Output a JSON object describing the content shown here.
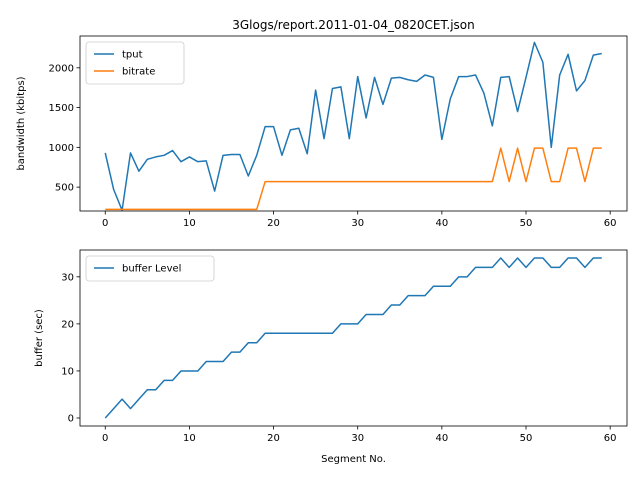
{
  "chart_data": [
    {
      "type": "line",
      "title": "3Glogs/report.2011-01-04_0820CET.json",
      "xlabel": "",
      "ylabel": "bandwidth (kbitps)",
      "xlim": [
        -3,
        62
      ],
      "ylim": [
        200,
        2400
      ],
      "xticks": [
        0,
        10,
        20,
        30,
        40,
        50,
        60
      ],
      "yticks": [
        500,
        1000,
        1500,
        2000
      ],
      "grid": false,
      "legend_position": "upper left",
      "x": [
        0,
        1,
        2,
        3,
        4,
        5,
        6,
        7,
        8,
        9,
        10,
        11,
        12,
        13,
        14,
        15,
        16,
        17,
        18,
        19,
        20,
        21,
        22,
        23,
        24,
        25,
        26,
        27,
        28,
        29,
        30,
        31,
        32,
        33,
        34,
        35,
        36,
        37,
        38,
        39,
        40,
        41,
        42,
        43,
        44,
        45,
        46,
        47,
        48,
        49,
        50,
        51,
        52,
        53,
        54,
        55,
        56,
        57,
        58,
        59
      ],
      "series": [
        {
          "name": "tput",
          "color": "#1f77b4",
          "values": [
            930,
            470,
            210,
            930,
            700,
            850,
            880,
            900,
            960,
            820,
            880,
            820,
            830,
            450,
            900,
            910,
            910,
            640,
            900,
            1260,
            1260,
            900,
            1220,
            1240,
            920,
            1720,
            1110,
            1740,
            1760,
            1110,
            1890,
            1370,
            1880,
            1540,
            1870,
            1880,
            1850,
            1830,
            1910,
            1880,
            1100,
            1610,
            1890,
            1890,
            1910,
            1680,
            1270,
            1880,
            1890,
            1450,
            1880,
            2320,
            2070,
            1000,
            1910,
            2170,
            1710,
            1840,
            2160,
            2180
          ]
        },
        {
          "name": "bitrate",
          "color": "#ff7f0e",
          "values": [
            220,
            220,
            220,
            220,
            220,
            220,
            220,
            220,
            220,
            220,
            220,
            220,
            220,
            220,
            220,
            220,
            220,
            220,
            220,
            570,
            570,
            570,
            570,
            570,
            570,
            570,
            570,
            570,
            570,
            570,
            570,
            570,
            570,
            570,
            570,
            570,
            570,
            570,
            570,
            570,
            570,
            570,
            570,
            570,
            570,
            570,
            570,
            990,
            570,
            990,
            570,
            990,
            990,
            570,
            570,
            990,
            990,
            570,
            990,
            990
          ]
        }
      ]
    },
    {
      "type": "line",
      "title": "",
      "xlabel": "Segment No.",
      "ylabel": "buffer (sec)",
      "xlim": [
        -3,
        62
      ],
      "ylim": [
        -1.7,
        35.7
      ],
      "xticks": [
        0,
        10,
        20,
        30,
        40,
        50,
        60
      ],
      "yticks": [
        0,
        10,
        20,
        30
      ],
      "grid": false,
      "legend_position": "upper left",
      "x": [
        0,
        1,
        2,
        3,
        4,
        5,
        6,
        7,
        8,
        9,
        10,
        11,
        12,
        13,
        14,
        15,
        16,
        17,
        18,
        19,
        20,
        21,
        22,
        23,
        24,
        25,
        26,
        27,
        28,
        29,
        30,
        31,
        32,
        33,
        34,
        35,
        36,
        37,
        38,
        39,
        40,
        41,
        42,
        43,
        44,
        45,
        46,
        47,
        48,
        49,
        50,
        51,
        52,
        53,
        54,
        55,
        56,
        57,
        58,
        59
      ],
      "series": [
        {
          "name": "buffer Level",
          "color": "#1f77b4",
          "values": [
            0,
            2,
            4,
            2,
            4,
            6,
            6,
            8,
            8,
            10,
            10,
            10,
            12,
            12,
            12,
            14,
            14,
            16,
            16,
            18,
            18,
            18,
            18,
            18,
            18,
            18,
            18,
            18,
            20,
            20,
            20,
            22,
            22,
            22,
            24,
            24,
            26,
            26,
            26,
            28,
            28,
            28,
            30,
            30,
            32,
            32,
            32,
            34,
            32,
            34,
            32,
            34,
            34,
            32,
            32,
            34,
            34,
            32,
            34,
            34
          ]
        }
      ]
    }
  ]
}
